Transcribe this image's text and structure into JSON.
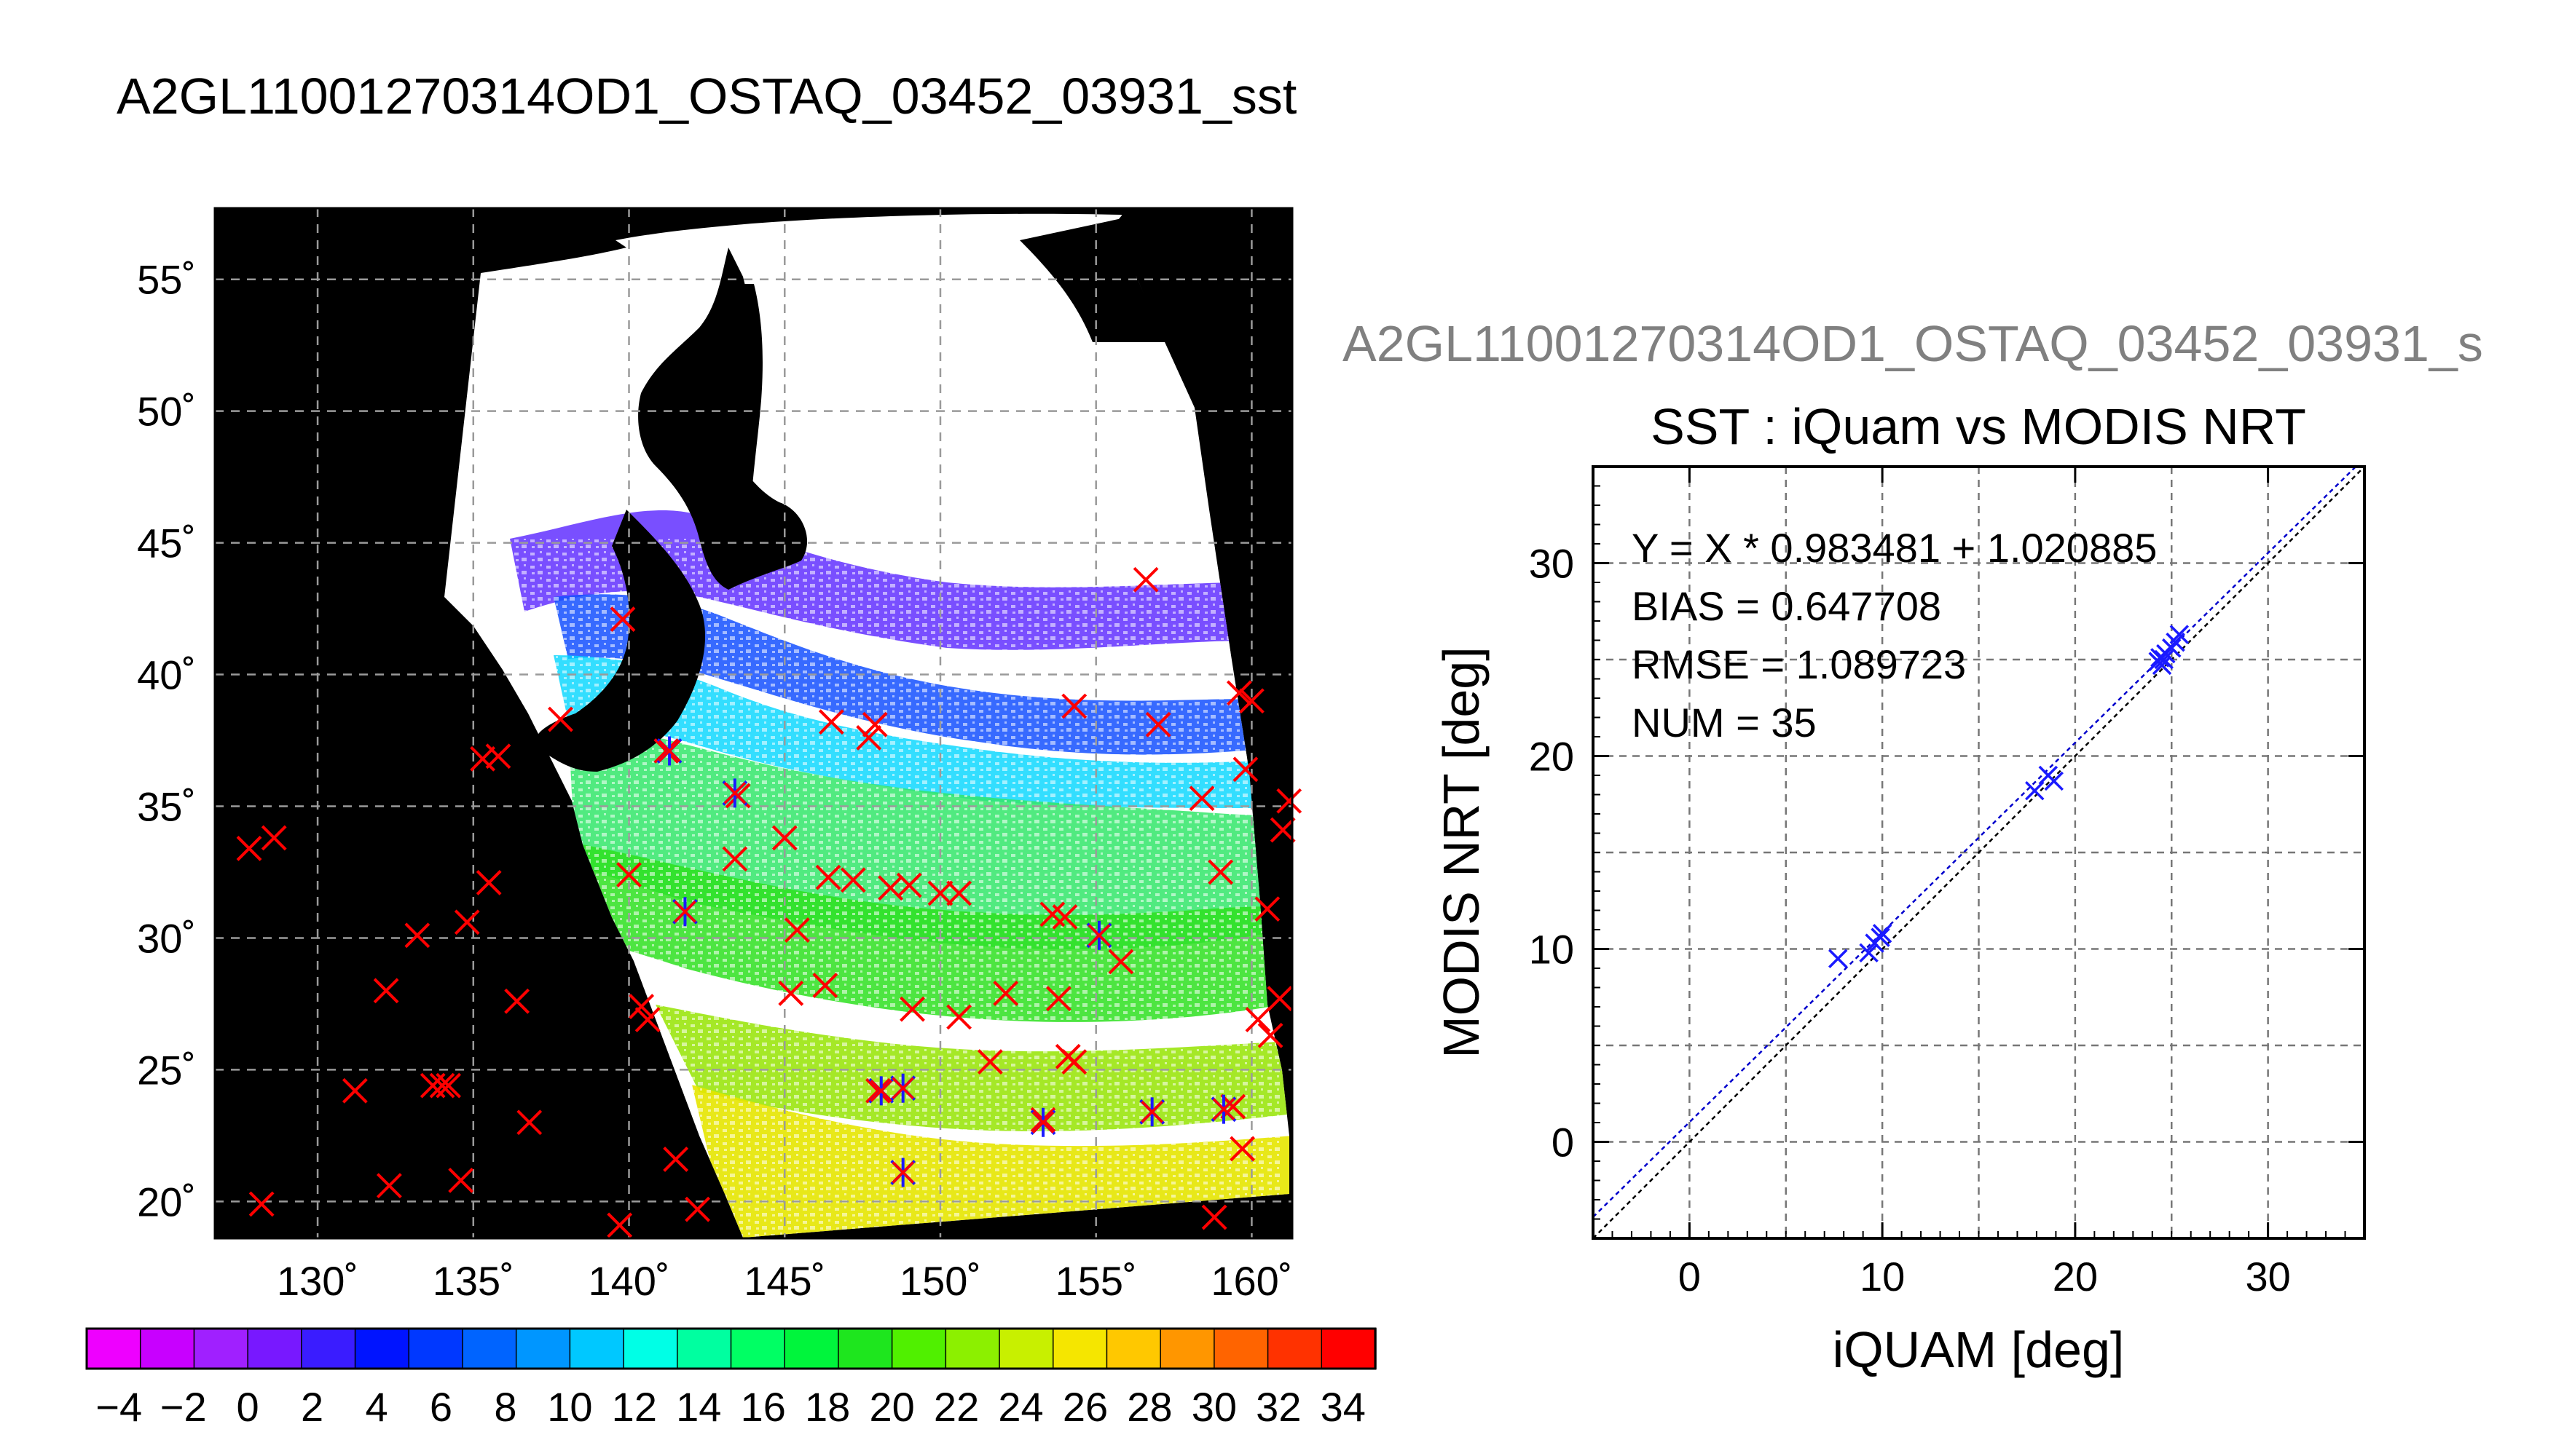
{
  "page_title": "A2GL11001270314OD1_OSTAQ_03452_03931_sst",
  "map": {
    "lat_labels": [
      "55˚",
      "50˚",
      "45˚",
      "40˚",
      "35˚",
      "30˚",
      "25˚",
      "20˚"
    ],
    "lat_values": [
      55,
      50,
      45,
      40,
      35,
      30,
      25,
      20
    ],
    "lon_labels": [
      "130˚",
      "135˚",
      "140˚",
      "145˚",
      "150˚",
      "155˚",
      "160˚"
    ],
    "lon_values": [
      130,
      135,
      140,
      145,
      150,
      155,
      160
    ],
    "lon_range": [
      126.7,
      161.3
    ],
    "lat_range": [
      18.6,
      57.7
    ],
    "background_color": "#000000",
    "grid": "dashed",
    "cross_color": "#ff0000",
    "star_color": "#1a1aff",
    "red_crosses": [
      [
        127.8,
        33.4
      ],
      [
        128.6,
        33.8
      ],
      [
        128.2,
        19.9
      ],
      [
        131.2,
        24.2
      ],
      [
        132.2,
        28.0
      ],
      [
        132.3,
        20.6
      ],
      [
        133.2,
        30.1
      ],
      [
        133.7,
        24.4
      ],
      [
        134.0,
        24.4
      ],
      [
        134.2,
        24.4
      ],
      [
        134.6,
        20.8
      ],
      [
        134.8,
        30.6
      ],
      [
        135.3,
        36.8
      ],
      [
        135.5,
        32.1
      ],
      [
        135.8,
        36.9
      ],
      [
        136.4,
        27.6
      ],
      [
        136.8,
        23.0
      ],
      [
        137.8,
        38.3
      ],
      [
        139.8,
        42.1
      ],
      [
        139.7,
        19.1
      ],
      [
        140.0,
        32.4
      ],
      [
        140.4,
        27.4
      ],
      [
        140.6,
        26.9
      ],
      [
        141.2,
        37.1
      ],
      [
        141.5,
        21.6
      ],
      [
        141.8,
        31.0
      ],
      [
        142.2,
        19.7
      ],
      [
        143.4,
        33.0
      ],
      [
        143.5,
        35.4
      ],
      [
        145.0,
        33.8
      ],
      [
        145.4,
        30.3
      ],
      [
        145.2,
        27.9
      ],
      [
        146.3,
        28.2
      ],
      [
        146.4,
        32.3
      ],
      [
        146.5,
        38.2
      ],
      [
        147.2,
        32.2
      ],
      [
        147.7,
        37.6
      ],
      [
        147.9,
        38.1
      ],
      [
        148.0,
        24.2
      ],
      [
        148.4,
        31.9
      ],
      [
        149.0,
        32.0
      ],
      [
        149.1,
        27.3
      ],
      [
        150.0,
        31.7
      ],
      [
        150.6,
        31.7
      ],
      [
        150.6,
        27.0
      ],
      [
        151.6,
        25.3
      ],
      [
        152.1,
        27.9
      ],
      [
        153.3,
        23.1
      ],
      [
        153.6,
        30.9
      ],
      [
        153.8,
        27.7
      ],
      [
        154.0,
        30.8
      ],
      [
        154.1,
        25.5
      ],
      [
        154.3,
        25.3
      ],
      [
        154.3,
        38.8
      ],
      [
        155.1,
        30.1
      ],
      [
        155.8,
        29.1
      ],
      [
        156.6,
        43.6
      ],
      [
        156.8,
        23.4
      ],
      [
        157.0,
        38.1
      ],
      [
        158.4,
        35.3
      ],
      [
        158.8,
        19.4
      ],
      [
        159.0,
        32.5
      ],
      [
        159.4,
        23.6
      ],
      [
        159.6,
        39.3
      ],
      [
        159.7,
        22.0
      ],
      [
        159.8,
        36.4
      ],
      [
        160.0,
        39.0
      ],
      [
        160.2,
        26.9
      ],
      [
        160.5,
        31.1
      ],
      [
        160.6,
        26.3
      ],
      [
        160.9,
        27.7
      ],
      [
        161.0,
        34.1
      ],
      [
        161.2,
        35.2
      ]
    ],
    "blue_stars": [
      [
        141.3,
        37.1
      ],
      [
        141.8,
        31.0
      ],
      [
        143.4,
        35.5
      ],
      [
        148.1,
        24.2
      ],
      [
        148.8,
        24.3
      ],
      [
        148.8,
        21.1
      ],
      [
        153.3,
        23.0
      ],
      [
        155.1,
        30.1
      ],
      [
        156.8,
        23.4
      ],
      [
        159.1,
        23.5
      ]
    ]
  },
  "colorbar": {
    "tick_labels": [
      "−4",
      "−2",
      "0",
      "2",
      "4",
      "6",
      "8",
      "10",
      "12",
      "14",
      "16",
      "18",
      "20",
      "22",
      "24",
      "26",
      "28",
      "30",
      "32",
      "34"
    ],
    "min": -5,
    "max": 35,
    "colors": [
      "#ee00ff",
      "#c800ff",
      "#a020ff",
      "#7818ff",
      "#3a1cff",
      "#0014ff",
      "#0038ff",
      "#0064ff",
      "#0096ff",
      "#00c8ff",
      "#00ffe6",
      "#00ffa0",
      "#00ff64",
      "#00f53c",
      "#1ee61e",
      "#50f000",
      "#8cf000",
      "#c8f000",
      "#f5e600",
      "#ffc800",
      "#ff9600",
      "#ff6400",
      "#ff3200",
      "#ff0000"
    ]
  },
  "scatter_header": "A2GL11001270314OD1_OSTAQ_03452_03931_s",
  "stats": {
    "equation": "Y = X * 0.983481 + 1.020885",
    "bias": "BIAS = 0.647708",
    "rmse": "RMSE = 1.089723",
    "num": "NUM = 35"
  },
  "chart_data": {
    "type": "scatter",
    "title": "SST : iQuam vs MODIS NRT",
    "xlabel": "iQUAM [deg]",
    "ylabel": "MODIS NRT [deg]",
    "xlim": [
      -5,
      35
    ],
    "ylim": [
      -5,
      35
    ],
    "x_ticks": [
      0,
      10,
      20,
      30
    ],
    "y_ticks": [
      0,
      10,
      20,
      30
    ],
    "x_tick_labels": [
      "0",
      "10",
      "20",
      "30"
    ],
    "y_tick_labels": [
      "0",
      "10",
      "20",
      "30"
    ],
    "grid": true,
    "series": [
      {
        "color": "#1a1aff",
        "x": [
          7.7,
          9.3,
          9.6,
          9.9,
          10.0,
          17.9,
          18.6,
          18.9,
          24.3,
          24.4,
          24.5,
          24.6,
          24.7,
          25.0,
          25.2,
          25.4
        ],
        "y": [
          9.5,
          9.8,
          10.3,
          10.6,
          10.8,
          18.2,
          19.0,
          18.7,
          24.9,
          25.1,
          24.7,
          25.0,
          25.3,
          25.6,
          25.9,
          26.3
        ]
      }
    ],
    "fit_line": {
      "slope": 0.983481,
      "intercept": 1.020885,
      "color": "#0000cc"
    },
    "identity_line": {
      "slope": 1,
      "intercept": 0,
      "color": "#000000"
    }
  }
}
